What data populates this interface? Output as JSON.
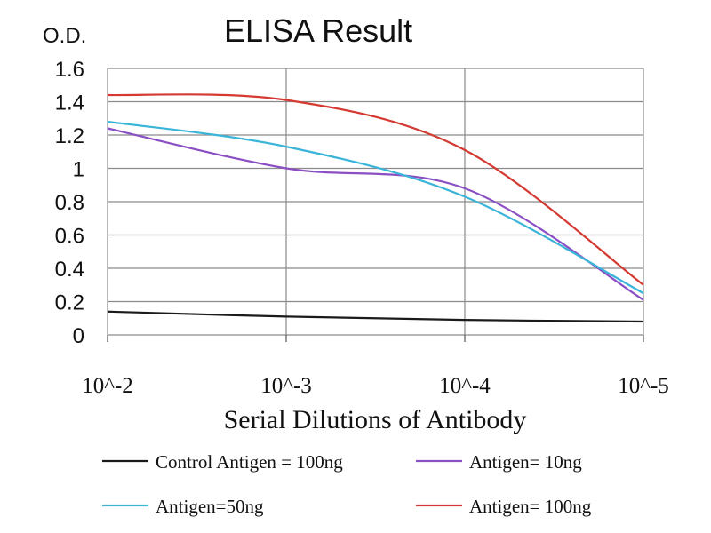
{
  "chart_data": {
    "type": "line",
    "title": "ELISA Result",
    "ylabel": "O.D.",
    "xlabel": "Serial Dilutions of Antibody",
    "categories": [
      "10^-2",
      "10^-3",
      "10^-4",
      "10^-5"
    ],
    "ylim": [
      0,
      1.6
    ],
    "yticks": [
      "0",
      "0.2",
      "0.4",
      "0.6",
      "0.8",
      "1",
      "1.2",
      "1.4",
      "1.6"
    ],
    "grid": true,
    "legend_position": "bottom",
    "series": [
      {
        "name": "Control Antigen = 100ng",
        "color": "#1a1a1a",
        "values": [
          0.14,
          0.11,
          0.09,
          0.08
        ]
      },
      {
        "name": "Antigen= 10ng",
        "color": "#8b4fc4",
        "values": [
          1.24,
          1.0,
          0.88,
          0.21
        ]
      },
      {
        "name": "Antigen=50ng",
        "color": "#3ab4d8",
        "values": [
          1.28,
          1.13,
          0.83,
          0.25
        ]
      },
      {
        "name": "Antigen= 100ng",
        "color": "#d43a32",
        "values": [
          1.44,
          1.41,
          1.11,
          0.3
        ]
      }
    ]
  }
}
